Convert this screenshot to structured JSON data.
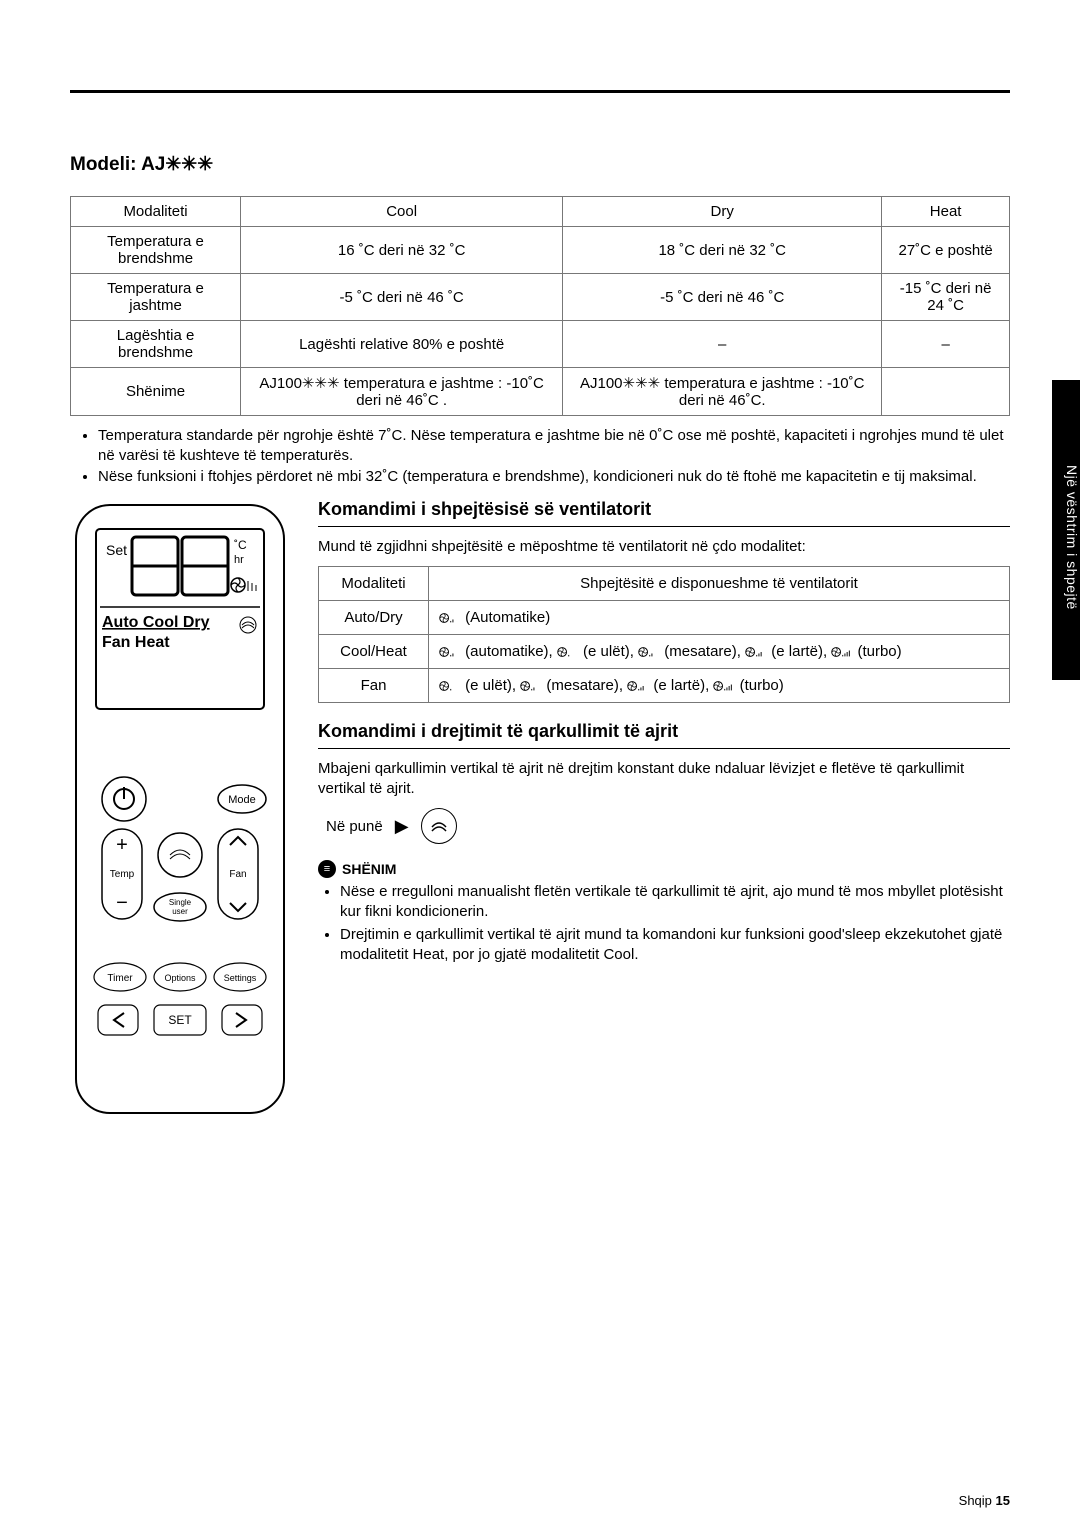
{
  "side_tab": "Një vështrim i shpejtë",
  "model_heading": "Modeli: AJ✳✳✳",
  "spec_table": {
    "headers": [
      "Modaliteti",
      "Cool",
      "Dry",
      "Heat"
    ],
    "rows": [
      [
        "Temperatura e brendshme",
        "16 ˚C deri në 32 ˚C",
        "18 ˚C deri në 32 ˚C",
        "27˚C e poshtë"
      ],
      [
        "Temperatura e jashtme",
        "-5 ˚C deri në 46 ˚C",
        "-5 ˚C deri në 46 ˚C",
        "-15 ˚C deri në 24 ˚C"
      ],
      [
        "Lagështia e brendshme",
        "Lagështi relative 80% e poshtë",
        "–",
        "–"
      ],
      [
        "Shënime",
        "AJ100✳✳✳ temperatura e jashtme : -10˚C deri në 46˚C .",
        "AJ100✳✳✳ temperatura e jashtme : -10˚C deri në 46˚C.",
        ""
      ]
    ]
  },
  "spec_bullets": [
    "Temperatura standarde për ngrohje është 7˚C. Nëse temperatura e jashtme bie në 0˚C ose më poshtë, kapaciteti i ngrohjes mund të ulet në varësi të kushteve të temperaturës.",
    "Nëse funksioni i ftohjes përdoret në mbi 32˚C (temperatura e brendshme), kondicioneri nuk do të ftohë me kapacitetin e tij maksimal."
  ],
  "remote": {
    "display_top": "Set",
    "display_unit": "˚C",
    "display_hr": "hr",
    "modes_line1": "Auto Cool Dry",
    "modes_line2": "Fan   Heat",
    "btn_mode": "Mode",
    "btn_temp": "Temp",
    "btn_fan": "Fan",
    "btn_single": "Single user",
    "btn_timer": "Timer",
    "btn_options": "Options",
    "btn_settings": "Settings",
    "btn_set": "SET"
  },
  "fan_section": {
    "title": "Komandimi i shpejtësisë së ventilatorit",
    "intro": "Mund të zgjidhni shpejtësitë e mëposhtme të ventilatorit në çdo modalitet:",
    "headers": [
      "Modaliteti",
      "Shpejtësitë e disponueshme të ventilatorit"
    ],
    "rows": [
      {
        "mode": "Auto/Dry",
        "speeds": "(Automatike)"
      },
      {
        "mode": "Cool/Heat",
        "speeds": "(automatike),   (e ulët),   (mesatare),   (e lartë),   (turbo)"
      },
      {
        "mode": "Fan",
        "speeds": "(e ulët),   (mesatare),   (e lartë),   (turbo)"
      }
    ]
  },
  "airflow_section": {
    "title": "Komandimi i drejtimit të qarkullimit të ajrit",
    "intro": "Mbajeni qarkullimin vertikal të ajrit në drejtim konstant duke ndaluar lëvizjet e fletëve të qarkullimit vertikal të ajrit.",
    "working_label": "Në punë",
    "note_label": "SHËNIM",
    "notes": [
      "Nëse e rregulloni manualisht fletën vertikale të qarkullimit të ajrit, ajo mund të mos mbyllet plotësisht kur fikni kondicionerin.",
      "Drejtimin e qarkullimit vertikal të ajrit mund ta komandoni kur funksioni good'sleep ekzekutohet gjatë modalitetit Heat, por jo gjatë modalitetit Cool."
    ]
  },
  "footer": {
    "lang": "Shqip",
    "page": "15"
  },
  "colors": {
    "border": "#777777",
    "text": "#000000",
    "bg": "#ffffff",
    "tab_bg": "#000000",
    "tab_fg": "#ffffff"
  }
}
